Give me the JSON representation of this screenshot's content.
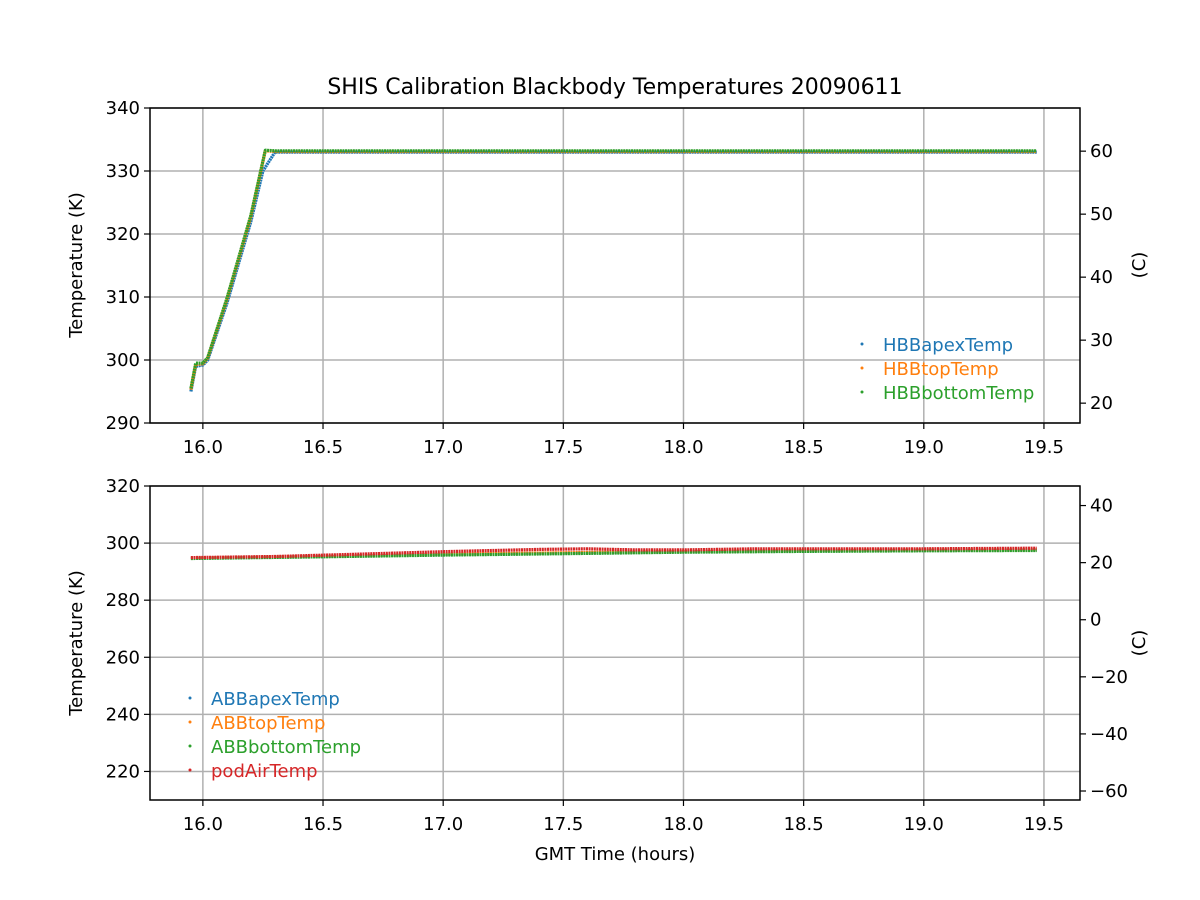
{
  "chart_data": [
    {
      "type": "scatter",
      "title": "SHIS Calibration Blackbody Temperatures 20090611",
      "xlabel": "",
      "ylabel": "Temperature (K)",
      "y2label": "(C)",
      "xlim": [
        15.78,
        19.65
      ],
      "ylim": [
        290,
        340
      ],
      "y2lim": [
        16.85,
        66.85
      ],
      "xticks": [
        "16.0",
        "16.5",
        "17.0",
        "17.5",
        "18.0",
        "18.5",
        "19.0",
        "19.5"
      ],
      "yticks": [
        "290",
        "300",
        "310",
        "320",
        "330",
        "340"
      ],
      "y2ticks": [
        "20",
        "30",
        "40",
        "50",
        "60"
      ],
      "grid": true,
      "legend_position": "lower-right",
      "series": [
        {
          "name": "HBBapexTemp",
          "color": "#1f77b4",
          "points": [
            [
              15.95,
              295.0
            ],
            [
              15.97,
              299.0
            ],
            [
              16.0,
              299.2
            ],
            [
              16.02,
              300.0
            ],
            [
              16.1,
              309.0
            ],
            [
              16.2,
              322.0
            ],
            [
              16.25,
              330.0
            ],
            [
              16.3,
              333.0
            ],
            [
              17.0,
              333.0
            ],
            [
              18.0,
              333.0
            ],
            [
              19.0,
              333.0
            ],
            [
              19.47,
              333.0
            ]
          ]
        },
        {
          "name": "HBBtopTemp",
          "color": "#ff7f0e",
          "points": [
            [
              15.95,
              295.3
            ],
            [
              15.97,
              299.3
            ],
            [
              16.0,
              299.4
            ],
            [
              16.02,
              300.3
            ],
            [
              16.1,
              309.6
            ],
            [
              16.2,
              322.8
            ],
            [
              16.26,
              333.2
            ],
            [
              16.3,
              333.1
            ],
            [
              17.0,
              333.1
            ],
            [
              18.0,
              333.1
            ],
            [
              19.0,
              333.1
            ],
            [
              19.47,
              333.1
            ]
          ]
        },
        {
          "name": "HBBbottomTemp",
          "color": "#2ca02c",
          "points": [
            [
              15.95,
              295.5
            ],
            [
              15.97,
              299.5
            ],
            [
              16.0,
              299.5
            ],
            [
              16.02,
              300.4
            ],
            [
              16.1,
              309.8
            ],
            [
              16.2,
              323.0
            ],
            [
              16.26,
              333.3
            ],
            [
              16.3,
              333.2
            ],
            [
              17.0,
              333.2
            ],
            [
              18.0,
              333.2
            ],
            [
              19.0,
              333.2
            ],
            [
              19.47,
              333.2
            ]
          ]
        }
      ]
    },
    {
      "type": "scatter",
      "title": "",
      "xlabel": "GMT Time (hours)",
      "ylabel": "Temperature (K)",
      "y2label": "(C)",
      "xlim": [
        15.78,
        19.65
      ],
      "ylim": [
        210,
        320
      ],
      "y2lim": [
        -63.15,
        46.85
      ],
      "xticks": [
        "16.0",
        "16.5",
        "17.0",
        "17.5",
        "18.0",
        "18.5",
        "19.0",
        "19.5"
      ],
      "yticks": [
        "220",
        "240",
        "260",
        "280",
        "300",
        "320"
      ],
      "y2ticks": [
        "−60",
        "−40",
        "−20",
        "0",
        "20",
        "40"
      ],
      "grid": true,
      "legend_position": "lower-left",
      "series": [
        {
          "name": "ABBapexTemp",
          "color": "#1f77b4",
          "points": [
            [
              15.95,
              294.7
            ],
            [
              16.5,
              295.3
            ],
            [
              17.0,
              296.0
            ],
            [
              17.5,
              296.5
            ],
            [
              18.0,
              297.0
            ],
            [
              18.5,
              297.3
            ],
            [
              19.0,
              297.5
            ],
            [
              19.47,
              297.6
            ]
          ]
        },
        {
          "name": "ABBtopTemp",
          "color": "#ff7f0e",
          "points": [
            [
              15.95,
              294.8
            ],
            [
              16.5,
              295.4
            ],
            [
              17.0,
              296.1
            ],
            [
              17.5,
              296.6
            ],
            [
              18.0,
              297.1
            ],
            [
              18.5,
              297.4
            ],
            [
              19.0,
              297.6
            ],
            [
              19.47,
              297.7
            ]
          ]
        },
        {
          "name": "ABBbottomTemp",
          "color": "#2ca02c",
          "points": [
            [
              15.95,
              294.6
            ],
            [
              16.5,
              295.2
            ],
            [
              17.0,
              295.8
            ],
            [
              17.5,
              296.3
            ],
            [
              18.0,
              296.8
            ],
            [
              18.5,
              297.1
            ],
            [
              19.0,
              297.3
            ],
            [
              19.47,
              297.4
            ]
          ]
        },
        {
          "name": "podAirTemp",
          "color": "#d62728",
          "points": [
            [
              15.95,
              294.9
            ],
            [
              16.3,
              295.3
            ],
            [
              16.6,
              296.0
            ],
            [
              17.0,
              297.0
            ],
            [
              17.4,
              297.8
            ],
            [
              17.6,
              298.0
            ],
            [
              17.8,
              297.6
            ],
            [
              18.0,
              297.6
            ],
            [
              18.3,
              298.0
            ],
            [
              18.6,
              298.0
            ],
            [
              19.0,
              298.0
            ],
            [
              19.47,
              298.2
            ]
          ]
        }
      ]
    }
  ]
}
